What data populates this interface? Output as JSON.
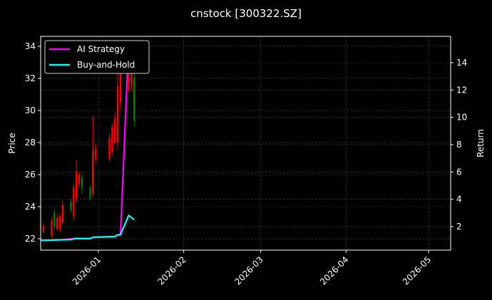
{
  "chart_data": {
    "type": "candlestick+line",
    "title": "cnstock [300322.SZ]",
    "ylabel": "Price",
    "y2label": "Return",
    "xlim": [
      "2025-12-11",
      "2026-05-09"
    ],
    "ylim": [
      21.29,
      34.62
    ],
    "y2lim": [
      0.28,
      15.93
    ],
    "xticks": [
      "2026-01",
      "2026-02",
      "2026-03",
      "2026-04",
      "2026-05"
    ],
    "xtick_dates": [
      "2026-01-01",
      "2026-02-01",
      "2026-03-01",
      "2026-04-01",
      "2026-05-01"
    ],
    "yticks": [
      22,
      24,
      26,
      28,
      30,
      32,
      34
    ],
    "y2ticks": [
      2,
      4,
      6,
      8,
      10,
      12,
      14
    ],
    "grid": true,
    "legend_placement": "upper-left",
    "colors": {
      "up": "#ff0000",
      "down": "#008000",
      "strategy": "#ff00ff",
      "buyhold": "#00ffff",
      "grid": "#444444"
    },
    "candles": [
      {
        "date": "2025-12-12",
        "open": 22.4,
        "high": 22.95,
        "low": 22.37,
        "close": 22.8
      },
      {
        "date": "2025-12-15",
        "open": 22.2,
        "high": 23.33,
        "low": 22.06,
        "close": 23.1
      },
      {
        "date": "2025-12-16",
        "open": 23.6,
        "high": 23.85,
        "low": 22.6,
        "close": 22.8
      },
      {
        "date": "2025-12-17",
        "open": 22.6,
        "high": 23.5,
        "low": 22.5,
        "close": 23.3
      },
      {
        "date": "2025-12-18",
        "open": 22.6,
        "high": 23.6,
        "low": 22.4,
        "close": 23.4
      },
      {
        "date": "2025-12-19",
        "open": 23.0,
        "high": 24.4,
        "low": 22.9,
        "close": 24.1
      },
      {
        "date": "2025-12-22",
        "open": 24.3,
        "high": 24.5,
        "low": 23.6,
        "close": 23.8
      },
      {
        "date": "2025-12-23",
        "open": 23.4,
        "high": 25.45,
        "low": 23.1,
        "close": 25.2
      },
      {
        "date": "2025-12-24",
        "open": 24.5,
        "high": 26.95,
        "low": 24.25,
        "close": 26.2
      },
      {
        "date": "2025-12-25",
        "open": 25.4,
        "high": 26.2,
        "low": 25.2,
        "close": 26.0
      },
      {
        "date": "2025-12-26",
        "open": 25.8,
        "high": 26.0,
        "low": 24.8,
        "close": 25.2
      },
      {
        "date": "2025-12-29",
        "open": 25.2,
        "high": 25.3,
        "low": 24.4,
        "close": 24.5
      },
      {
        "date": "2025-12-30",
        "open": 24.8,
        "high": 29.6,
        "low": 24.6,
        "close": 27.5
      },
      {
        "date": "2025-12-31",
        "open": 27.0,
        "high": 27.9,
        "low": 26.75,
        "close": 27.6
      },
      {
        "date": "2026-01-05",
        "open": 27.0,
        "high": 28.55,
        "low": 26.8,
        "close": 28.3
      },
      {
        "date": "2026-01-06",
        "open": 27.4,
        "high": 29.25,
        "low": 27.1,
        "close": 29.0
      },
      {
        "date": "2026-01-07",
        "open": 28.0,
        "high": 29.9,
        "low": 27.8,
        "close": 29.5
      },
      {
        "date": "2026-01-08",
        "open": 28.0,
        "high": 32.4,
        "low": 27.55,
        "close": 31.5
      },
      {
        "date": "2026-01-09",
        "open": 30.5,
        "high": 33.3,
        "low": 30.1,
        "close": 32.8
      },
      {
        "date": "2026-01-12",
        "open": 31.8,
        "high": 34.05,
        "low": 31.25,
        "close": 33.5
      },
      {
        "date": "2026-01-13",
        "open": 31.6,
        "high": 34.0,
        "low": 31.2,
        "close": 33.2
      },
      {
        "date": "2026-01-14",
        "open": 32.0,
        "high": 32.5,
        "low": 29.0,
        "close": 29.4
      }
    ],
    "series": [
      {
        "name": "AI Strategy",
        "axis": "right",
        "x": [
          "2025-12-11",
          "2025-12-15",
          "2025-12-19",
          "2025-12-24",
          "2025-12-29",
          "2025-12-30",
          "2026-01-07",
          "2026-01-08",
          "2026-01-09",
          "2026-01-12"
        ],
        "values": [
          1.0,
          1.01,
          1.04,
          1.15,
          1.12,
          1.22,
          1.27,
          1.4,
          1.4,
          15.5
        ]
      },
      {
        "name": "Buy-and-Hold",
        "axis": "right",
        "x": [
          "2025-12-11",
          "2025-12-15",
          "2025-12-19",
          "2025-12-22",
          "2025-12-24",
          "2025-12-26",
          "2025-12-29",
          "2025-12-30",
          "2026-01-07",
          "2026-01-08",
          "2026-01-09",
          "2026-01-12",
          "2026-01-14"
        ],
        "values": [
          1.0,
          1.01,
          1.04,
          1.06,
          1.13,
          1.12,
          1.12,
          1.22,
          1.27,
          1.4,
          1.4,
          2.82,
          2.5
        ]
      }
    ]
  }
}
